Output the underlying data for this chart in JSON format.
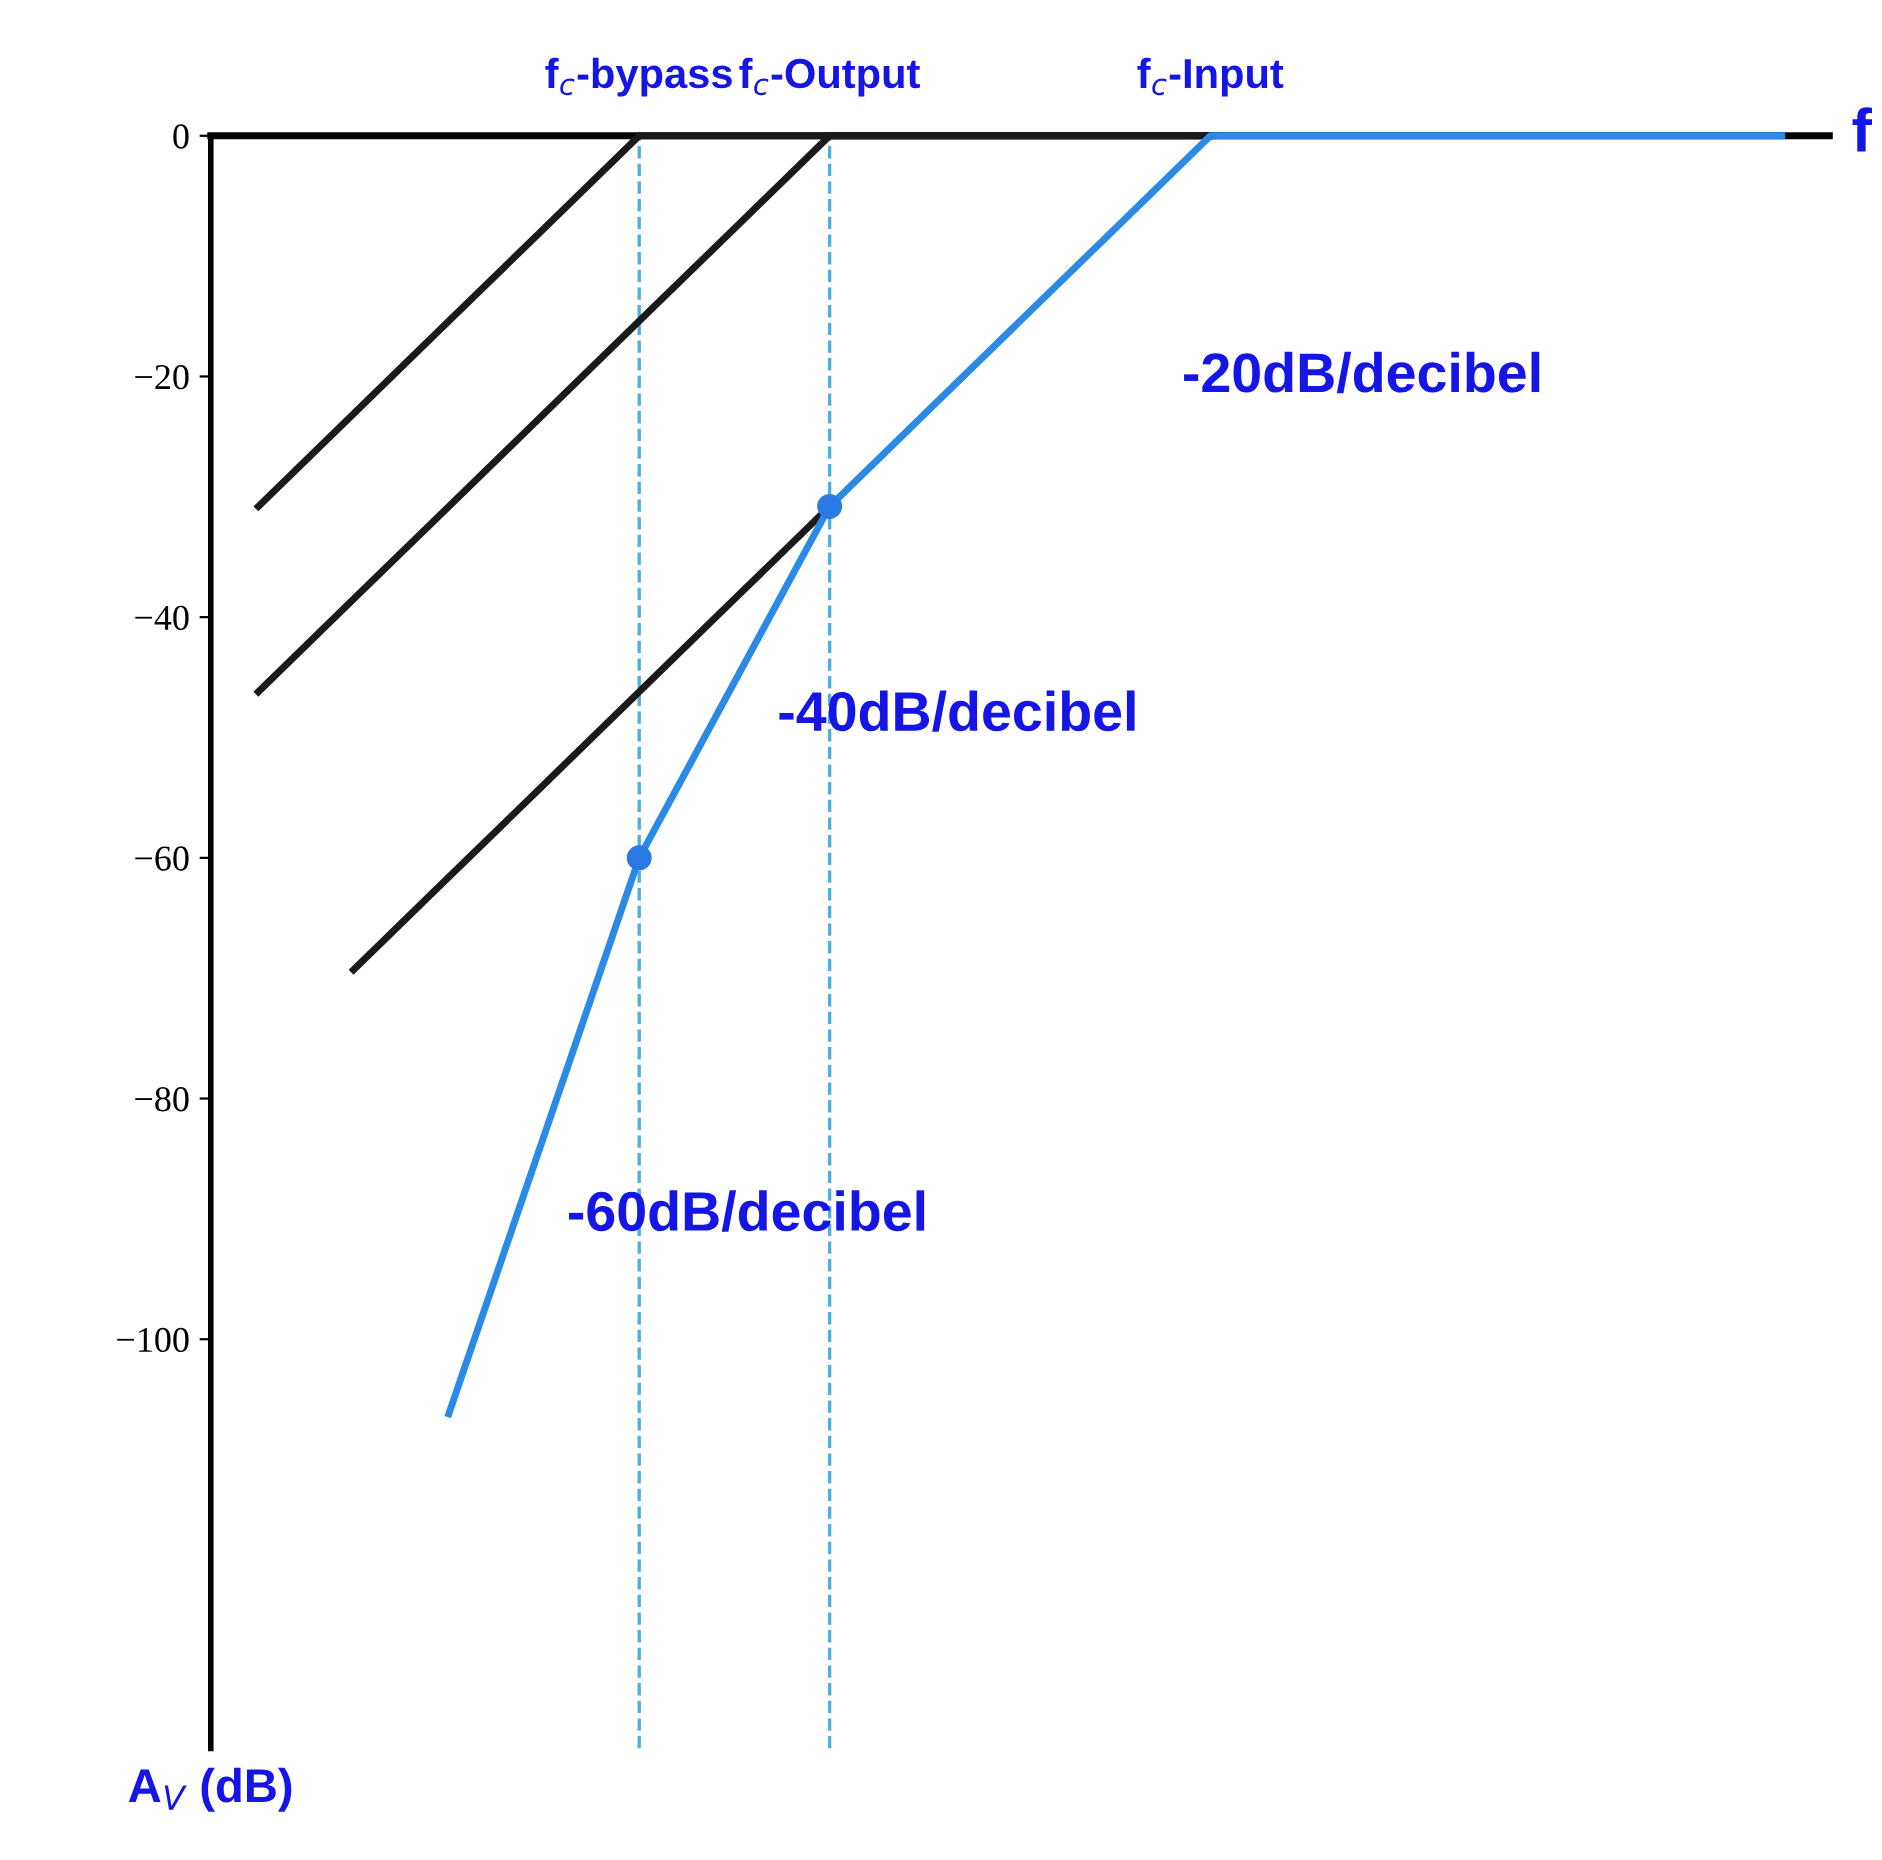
{
  "chart_data": {
    "type": "line",
    "xlabel": "f",
    "ylabel": "A$_{V}$ (dB)",
    "categories": [
      null,
      null,
      null,
      null,
      "f$_{c}$-bypass",
      null,
      "f$_{c}$-Output",
      null,
      null,
      null,
      "f$_{c}$-Input",
      null,
      null,
      null,
      null,
      null,
      null
    ],
    "ylim": [
      -134,
      0
    ],
    "yticks": [
      0,
      -20,
      -40,
      -60,
      -80,
      -100
    ],
    "grid": false,
    "legend": false,
    "marker": "none",
    "line_style": "solid",
    "series": [
      {
        "color": "#1a1a1a",
        "values": [
          -30.8,
          -23.1,
          -15.4,
          -7.7,
          0,
          0,
          0,
          0,
          0,
          0,
          0,
          null,
          null,
          null,
          null,
          null,
          null
        ]
      },
      {
        "color": "#1a1a1a",
        "values": [
          -46.2,
          -38.5,
          -30.8,
          -23.1,
          -15.4,
          -7.7,
          0,
          0,
          0,
          0,
          0,
          null,
          null,
          null,
          null,
          null,
          null
        ]
      },
      {
        "color": "#1a1a1a",
        "values": [
          null,
          -69.3,
          -61.6,
          -53.9,
          -46.2,
          -38.5,
          -30.8,
          null,
          null,
          null,
          null,
          null,
          null,
          null,
          null,
          null,
          null
        ]
      },
      {
        "color": "#2a8ae6",
        "values": [
          null,
          null,
          -106.2,
          -83.1,
          -60,
          -45.4,
          -30.8,
          -23.1,
          -15.4,
          -7.7,
          0,
          0,
          0,
          0,
          0,
          0,
          0
        ]
      },
      {
        "type": "scatter",
        "color": "#2a7ae6",
        "marker": "circle",
        "values": [
          null,
          null,
          null,
          null,
          -60,
          null,
          -30.8,
          null,
          null,
          null,
          null,
          null,
          null,
          null,
          null,
          null,
          null
        ]
      }
    ],
    "ref_lines": [
      {
        "axis": "x",
        "value": "f$_{c}$-bypass",
        "color": "#4ab0e0",
        "line_style": "dashed"
      },
      {
        "axis": "x",
        "value": "f$_{c}$-Output",
        "color": "#4ab0e0",
        "line_style": "dashed"
      }
    ],
    "annotations": [
      "-20dB/decibel",
      "-40dB/decibel",
      "-60dB/decibel"
    ]
  }
}
